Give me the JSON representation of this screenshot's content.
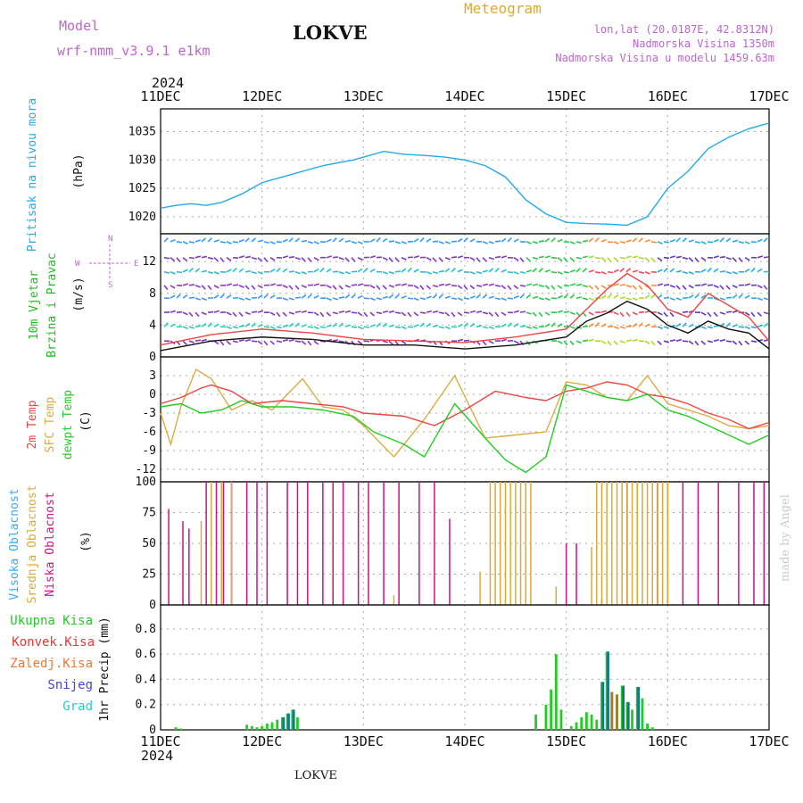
{
  "header": {
    "model_label": "Model",
    "model_name": "wrf-nmm_v3.9.1  e1km",
    "station": "LOKVE",
    "title": "Meteogram",
    "lonlat": "lon,lat (20.0187E, 42.8312N)",
    "elevation": "Nadmorska Visina 1350m",
    "model_elevation": "Nadmorska Visina u modelu 1459.63m",
    "year_top": "2024",
    "year_bottom": "2024",
    "footer_station": "LOKVE",
    "credit": "made by Angel"
  },
  "colors": {
    "pressure": "#22aaee",
    "cloud_high": "#33aaff",
    "cloud_mid": "#ddaa33",
    "cloud_low": "#cc1188",
    "temp2m": "#ee4444",
    "sfc": "#ddaa44",
    "dew": "#22cc22",
    "precip_total": "#22cc22",
    "precip_conv": "#ee3333",
    "precip_frz": "#ee7733",
    "precip_snow": "#4444dd",
    "precip_grad": "#22cccc",
    "model_purple": "#bb66cc"
  },
  "panels": {
    "pressure": {
      "labels": [
        "Pritisak na nivou mora",
        "(hPa)"
      ]
    },
    "wind": {
      "labels": [
        "10m Vjetar",
        "Brzina i Pravac",
        "(m/s)"
      ],
      "compass": {
        "n": "N",
        "s": "S",
        "e": "E",
        "w": "W"
      }
    },
    "temp": {
      "labels": [
        "2m Temp",
        "SFC Temp",
        "dewpt Temp",
        "(C)"
      ]
    },
    "cloud": {
      "labels": [
        "Visoka Oblacnost",
        "Srednja Oblacnost",
        "Niska Oblacnost",
        "(%)"
      ]
    },
    "precip": {
      "legend": [
        "Ukupna Kisa",
        "Konvek.Kisa",
        "Zaledj.Kisa",
        "Snijeg",
        "Grad"
      ],
      "ylabel": "1hr Precip (mm)"
    }
  },
  "chart_data": [
    {
      "type": "line",
      "title": "",
      "ylabel": "(hPa)",
      "xticks": [
        "11DEC",
        "12DEC",
        "13DEC",
        "14DEC",
        "15DEC",
        "16DEC",
        "17DEC"
      ],
      "ylim": [
        1017,
        1039
      ],
      "yticks": [
        1020,
        1025,
        1030,
        1035
      ],
      "grid": true,
      "series": [
        {
          "name": "Pritisak na nivou mora",
          "x": [
            0,
            0.15,
            0.3,
            0.45,
            0.6,
            0.8,
            1.0,
            1.3,
            1.6,
            1.9,
            2.2,
            2.4,
            2.6,
            2.8,
            3.0,
            3.2,
            3.4,
            3.6,
            3.8,
            4.0,
            4.2,
            4.4,
            4.6,
            4.8,
            5.0,
            5.2,
            5.4,
            5.6,
            5.8,
            6.0
          ],
          "y": [
            1021.5,
            1022,
            1022.3,
            1022,
            1022.5,
            1024,
            1026,
            1027.5,
            1029,
            1030,
            1031.5,
            1031,
            1030.8,
            1030.5,
            1030,
            1029,
            1027,
            1023,
            1020.5,
            1019,
            1018.8,
            1018.7,
            1018.5,
            1020,
            1025,
            1028,
            1032,
            1034,
            1035.5,
            1036.5
          ]
        }
      ]
    },
    {
      "type": "line",
      "title": "",
      "ylabel": "(m/s)",
      "xticks": [
        "11DEC",
        "12DEC",
        "13DEC",
        "14DEC",
        "15DEC",
        "16DEC",
        "17DEC"
      ],
      "ylim": [
        0,
        15.5
      ],
      "yticks": [
        0,
        4,
        8,
        12
      ],
      "grid": true,
      "series": [
        {
          "name": "wind speed",
          "x": [
            0,
            0.5,
            1.0,
            1.5,
            2.0,
            2.5,
            3.0,
            3.5,
            4.0,
            4.2,
            4.4,
            4.6,
            4.8,
            5.0,
            5.2,
            5.4,
            5.6,
            5.8,
            6.0
          ],
          "y": [
            0.8,
            2.0,
            2.5,
            2.2,
            1.5,
            1.5,
            1.0,
            1.5,
            2.5,
            4.5,
            5.5,
            7.0,
            6.0,
            4.0,
            3.0,
            4.5,
            3.5,
            3.0,
            1.0
          ]
        },
        {
          "name": "wind gust",
          "x": [
            0,
            0.5,
            1.0,
            1.5,
            2.0,
            2.5,
            3.0,
            3.5,
            4.0,
            4.2,
            4.4,
            4.6,
            4.8,
            5.0,
            5.2,
            5.4,
            5.6,
            5.8,
            6.0
          ],
          "y": [
            1.5,
            2.8,
            3.5,
            3.0,
            2.2,
            2.0,
            1.8,
            2.5,
            3.5,
            6.0,
            8.5,
            10.5,
            9.0,
            6.0,
            5.0,
            8.0,
            6.5,
            5.0,
            2.0
          ]
        }
      ]
    },
    {
      "type": "line",
      "title": "",
      "ylabel": "(C)",
      "xticks": [
        "11DEC",
        "12DEC",
        "13DEC",
        "14DEC",
        "15DEC",
        "16DEC",
        "17DEC"
      ],
      "ylim": [
        -14,
        6
      ],
      "yticks": [
        -12,
        -9,
        -6,
        -3,
        0,
        3
      ],
      "grid": true,
      "series": [
        {
          "name": "2m Temp",
          "x": [
            0,
            0.2,
            0.4,
            0.5,
            0.7,
            0.9,
            1.2,
            1.5,
            1.8,
            2.0,
            2.4,
            2.7,
            3.0,
            3.3,
            3.6,
            3.8,
            4.0,
            4.2,
            4.4,
            4.6,
            4.8,
            5.0,
            5.2,
            5.4,
            5.6,
            5.8,
            6.0
          ],
          "y": [
            -1.5,
            -0.5,
            1.0,
            1.5,
            0.5,
            -1.5,
            -1.0,
            -1.5,
            -2.0,
            -3.0,
            -3.5,
            -5.0,
            -2.5,
            0.5,
            -0.5,
            -1.0,
            0.5,
            1.0,
            2.0,
            1.5,
            0.0,
            -0.5,
            -1.5,
            -3.0,
            -4.0,
            -5.5,
            -4.5
          ]
        },
        {
          "name": "SFC Temp",
          "x": [
            0,
            0.1,
            0.2,
            0.35,
            0.5,
            0.7,
            0.9,
            1.1,
            1.4,
            1.6,
            1.8,
            2.0,
            2.3,
            2.6,
            2.9,
            3.2,
            3.5,
            3.8,
            4.0,
            4.2,
            4.4,
            4.6,
            4.8,
            5.0,
            5.2,
            5.4,
            5.6,
            5.8,
            6.0
          ],
          "y": [
            -3,
            -8,
            -2,
            4.0,
            2.5,
            -2.5,
            -1.0,
            -2.5,
            2.5,
            -2.0,
            -2.5,
            -5.0,
            -10.0,
            -4.0,
            3.0,
            -7.0,
            -6.5,
            -6.0,
            2.0,
            1.5,
            -0.5,
            -1.0,
            3.0,
            -1.5,
            -2.5,
            -3.5,
            -5.0,
            -5.5,
            -5.0
          ]
        },
        {
          "name": "dewpt Temp",
          "x": [
            0,
            0.2,
            0.4,
            0.6,
            0.8,
            1.0,
            1.3,
            1.6,
            1.9,
            2.1,
            2.4,
            2.6,
            2.9,
            3.2,
            3.4,
            3.6,
            3.8,
            4.0,
            4.2,
            4.4,
            4.6,
            4.8,
            5.0,
            5.2,
            5.4,
            5.6,
            5.8,
            6.0
          ],
          "y": [
            -2.0,
            -1.5,
            -3.0,
            -2.5,
            -1.0,
            -2.0,
            -2.0,
            -2.5,
            -3.5,
            -6.0,
            -8.0,
            -10.0,
            -1.5,
            -7.0,
            -10.5,
            -12.5,
            -10.0,
            1.5,
            0.5,
            -0.5,
            -1.0,
            0.0,
            -2.5,
            -3.5,
            -5.0,
            -6.5,
            -8.0,
            -6.5
          ]
        }
      ]
    },
    {
      "type": "bar",
      "title": "",
      "ylabel": "(%)",
      "xticks": [
        "11DEC",
        "12DEC",
        "13DEC",
        "14DEC",
        "15DEC",
        "16DEC",
        "17DEC"
      ],
      "ylim": [
        0,
        100
      ],
      "yticks": [
        0,
        25,
        50,
        75,
        100
      ],
      "grid": true,
      "series": [
        {
          "name": "Niska Oblacnost",
          "x": [
            0.08,
            0.22,
            0.28,
            0.45,
            0.55,
            0.62,
            0.7,
            0.85,
            0.95,
            1.05,
            1.25,
            1.35,
            1.45,
            1.6,
            1.7,
            1.8,
            1.95,
            2.05,
            2.2,
            2.35,
            2.55,
            2.7,
            2.85,
            4.0,
            4.1,
            4.35,
            4.6,
            4.9,
            5.0,
            5.15,
            5.3,
            5.5,
            5.7,
            5.85,
            5.95
          ],
          "y": [
            78,
            68,
            62,
            100,
            100,
            100,
            100,
            100,
            100,
            100,
            100,
            100,
            100,
            100,
            100,
            100,
            100,
            100,
            100,
            100,
            100,
            100,
            70,
            50,
            50,
            5,
            100,
            100,
            100,
            100,
            100,
            100,
            100,
            100,
            100
          ]
        },
        {
          "name": "Srednja Oblacnost",
          "x": [
            0.4,
            0.5,
            0.6,
            0.7,
            2.3,
            3.15,
            3.25,
            3.3,
            3.35,
            3.4,
            3.45,
            3.5,
            3.55,
            3.6,
            3.65,
            3.9,
            4.25,
            4.3,
            4.35,
            4.4,
            4.45,
            4.5,
            4.55,
            4.6,
            4.65,
            4.7,
            4.75,
            4.8,
            4.85,
            4.9,
            4.95,
            5.0
          ],
          "y": [
            68,
            100,
            100,
            100,
            8,
            27,
            100,
            100,
            100,
            100,
            100,
            100,
            100,
            100,
            100,
            15,
            47,
            100,
            100,
            100,
            100,
            100,
            100,
            100,
            100,
            100,
            100,
            100,
            100,
            100,
            100,
            100
          ]
        },
        {
          "name": "Visoka Oblacnost",
          "x": [],
          "y": []
        }
      ]
    },
    {
      "type": "bar",
      "title": "",
      "ylabel": "1hr Precip (mm)",
      "xticks": [
        "11DEC",
        "12DEC",
        "13DEC",
        "14DEC",
        "15DEC",
        "16DEC",
        "17DEC"
      ],
      "ylim": [
        0,
        0.99
      ],
      "yticks": [
        0,
        0.2,
        0.4,
        0.6,
        0.8
      ],
      "grid": true,
      "series": [
        {
          "name": "Ukupna Kisa",
          "x": [
            0.15,
            0.2,
            0.85,
            0.9,
            0.95,
            1.0,
            1.05,
            1.1,
            1.15,
            1.2,
            1.25,
            1.3,
            1.35,
            3.7,
            3.8,
            3.85,
            3.9,
            3.95,
            4.05,
            4.1,
            4.15,
            4.2,
            4.25,
            4.3,
            4.35,
            4.4,
            4.45,
            4.5,
            4.55,
            4.6,
            4.65,
            4.7,
            4.75,
            4.8,
            4.85
          ],
          "y": [
            0.02,
            0.01,
            0.04,
            0.03,
            0.02,
            0.03,
            0.05,
            0.06,
            0.08,
            0.1,
            0.13,
            0.16,
            0.1,
            0.12,
            0.2,
            0.32,
            0.6,
            0.16,
            0.03,
            0.06,
            0.1,
            0.14,
            0.12,
            0.08,
            0.38,
            0.62,
            0.3,
            0.28,
            0.35,
            0.22,
            0.16,
            0.34,
            0.25,
            0.05,
            0.02
          ]
        },
        {
          "name": "Snijeg",
          "x": [
            1.2,
            1.25,
            1.3,
            4.35,
            4.4,
            4.55,
            4.6,
            4.7
          ],
          "y": [
            0.1,
            0.13,
            0.16,
            0.38,
            0.62,
            0.35,
            0.22,
            0.34
          ]
        },
        {
          "name": "Konvek.Kisa",
          "x": [
            4.45,
            4.5
          ],
          "y": [
            0.3,
            0.28
          ]
        }
      ]
    }
  ]
}
